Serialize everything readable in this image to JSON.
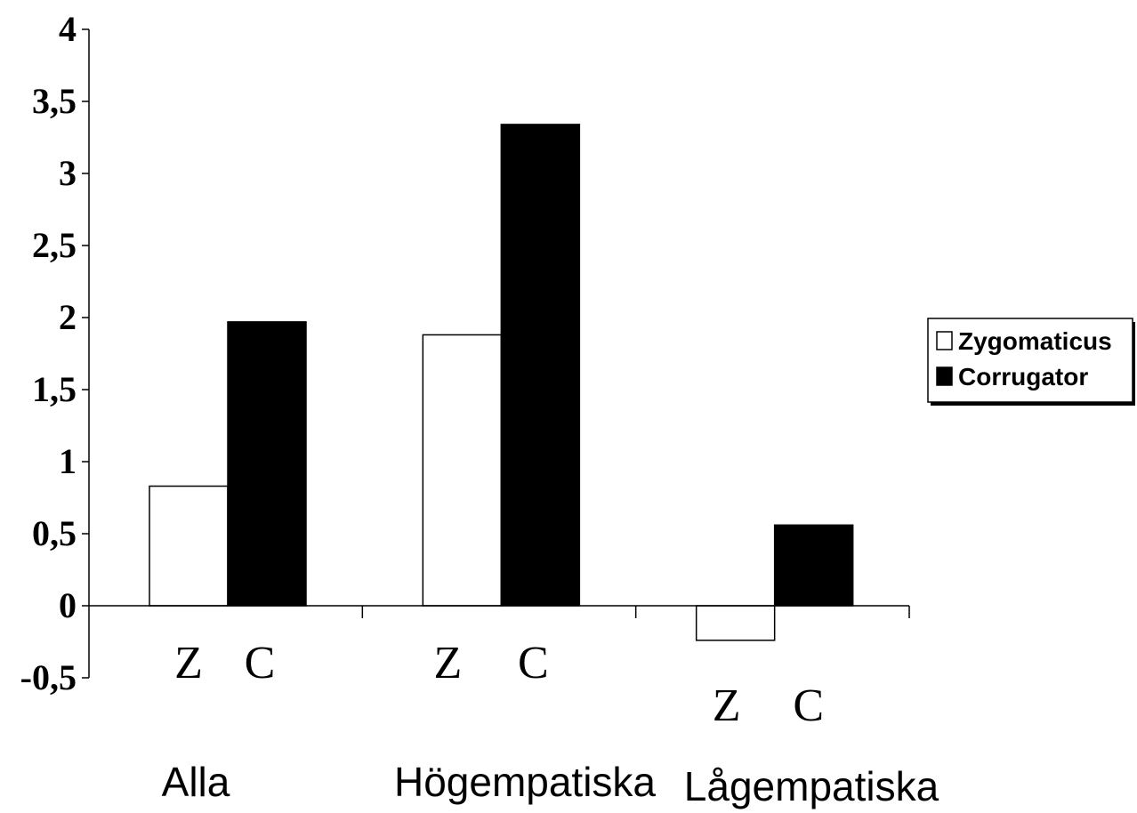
{
  "chart_data": {
    "type": "bar",
    "categories": [
      "Alla",
      "Högempatiska",
      "Lågempatiska"
    ],
    "series": [
      {
        "name": "Zygomaticus",
        "values": [
          0.83,
          1.88,
          -0.24
        ],
        "color": "#ffffff",
        "bar_label": "Z"
      },
      {
        "name": "Corrugator",
        "values": [
          1.97,
          3.34,
          0.56
        ],
        "color": "#000000",
        "bar_label": "C"
      }
    ],
    "ylim": [
      -0.5,
      4
    ],
    "yticks": [
      4,
      3.5,
      3,
      2.5,
      2,
      1.5,
      1,
      0.5,
      0,
      -0.5
    ],
    "ytick_labels": [
      "4",
      "3,5",
      "3",
      "2,5",
      "2",
      "1,5",
      "1",
      "0,5",
      "0",
      "-0,5"
    ],
    "legend": {
      "position": "right",
      "entries": [
        "Zygomaticus",
        "Corrugator"
      ]
    },
    "title": "",
    "xlabel": "",
    "ylabel": "",
    "grid": false
  }
}
